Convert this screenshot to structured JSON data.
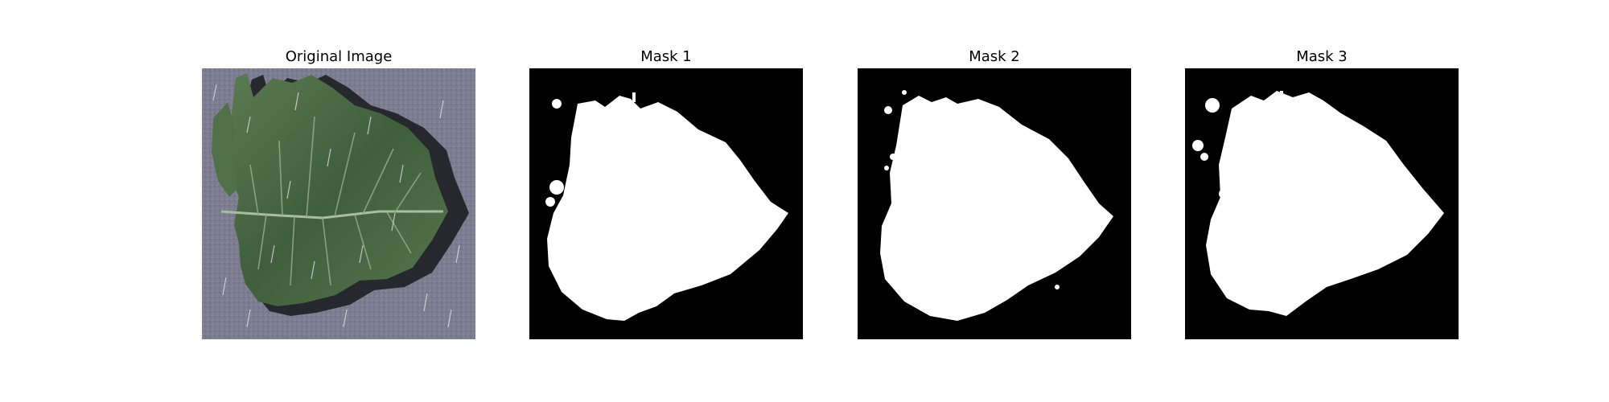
{
  "figure": {
    "panels": [
      {
        "title": "Original Image",
        "kind": "photo",
        "subject": "leaf"
      },
      {
        "title": "Mask 1",
        "kind": "mask"
      },
      {
        "title": "Mask 2",
        "kind": "mask"
      },
      {
        "title": "Mask 3",
        "kind": "mask"
      }
    ]
  },
  "colors": {
    "background": "#ffffff",
    "mask_background": "#000000",
    "mask_foreground": "#ffffff",
    "photo_background": "#7c7a8e",
    "leaf_fill": "#4a6a44",
    "leaf_vein": "#9fb59a"
  }
}
